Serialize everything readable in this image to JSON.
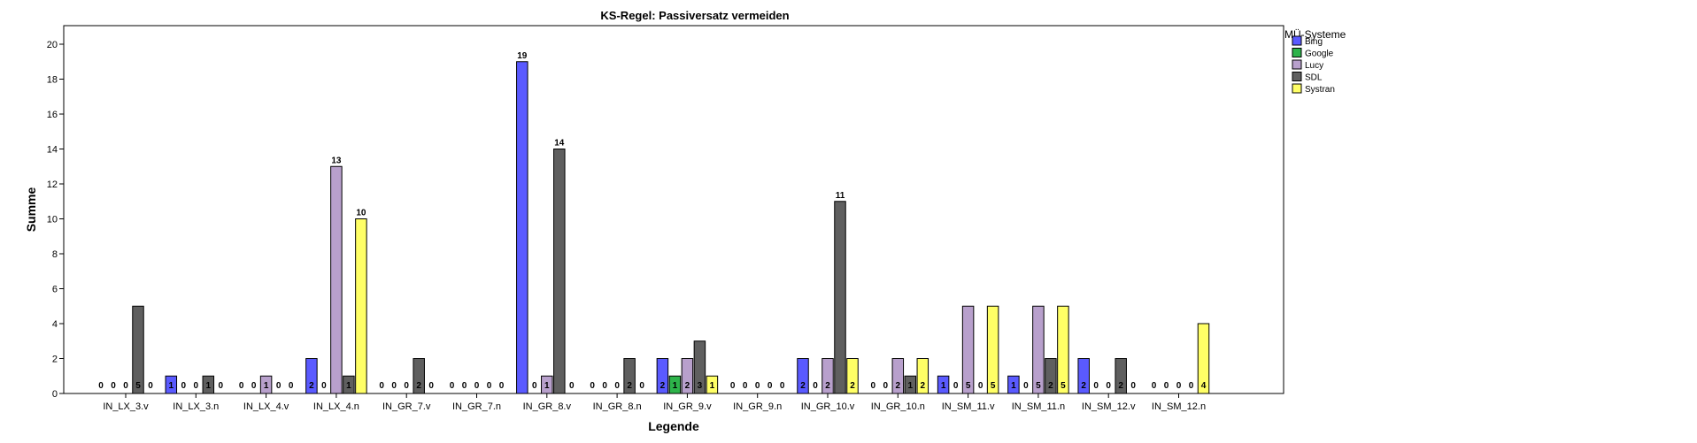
{
  "chart_data": {
    "type": "bar",
    "title": "KS-Regel: Passiversatz vermeiden",
    "xlabel": "Legende",
    "ylabel": "Summe",
    "ylim": [
      0,
      20
    ],
    "yticks": [
      0,
      2,
      4,
      6,
      8,
      10,
      12,
      14,
      16,
      18,
      20
    ],
    "grid": false,
    "legend_position": "top-right",
    "legend_title": "MÜ-Systeme",
    "categories": [
      "IN_LX_3.v",
      "IN_LX_3.n",
      "IN_LX_4.v",
      "IN_LX_4.n",
      "IN_GR_7.v",
      "IN_GR_7.n",
      "IN_GR_8.v",
      "IN_GR_8.n",
      "IN_GR_9.v",
      "IN_GR_9.n",
      "IN_GR_10.v",
      "IN_GR_10.n",
      "IN_SM_11.v",
      "IN_SM_11.n",
      "IN_SM_12.v",
      "IN_SM_12.n"
    ],
    "series": [
      {
        "name": "Bing",
        "color": "#5a5aff",
        "values": [
          0,
          1,
          0,
          2,
          0,
          0,
          19,
          0,
          2,
          0,
          2,
          0,
          1,
          1,
          2,
          0
        ]
      },
      {
        "name": "Google",
        "color": "#2db34a",
        "values": [
          0,
          0,
          0,
          0,
          0,
          0,
          0,
          0,
          1,
          0,
          0,
          0,
          0,
          0,
          0,
          0
        ]
      },
      {
        "name": "Lucy",
        "color": "#b8a0cc",
        "values": [
          0,
          0,
          1,
          13,
          0,
          0,
          1,
          0,
          2,
          0,
          2,
          2,
          5,
          5,
          0,
          0
        ]
      },
      {
        "name": "SDL",
        "color": "#5f5f5f",
        "values": [
          5,
          1,
          0,
          1,
          2,
          0,
          14,
          2,
          3,
          0,
          11,
          1,
          0,
          2,
          2,
          0
        ]
      },
      {
        "name": "Systran",
        "color": "#ffff66",
        "values": [
          0,
          0,
          0,
          10,
          0,
          0,
          0,
          0,
          1,
          0,
          2,
          2,
          5,
          5,
          0,
          4
        ]
      }
    ]
  }
}
